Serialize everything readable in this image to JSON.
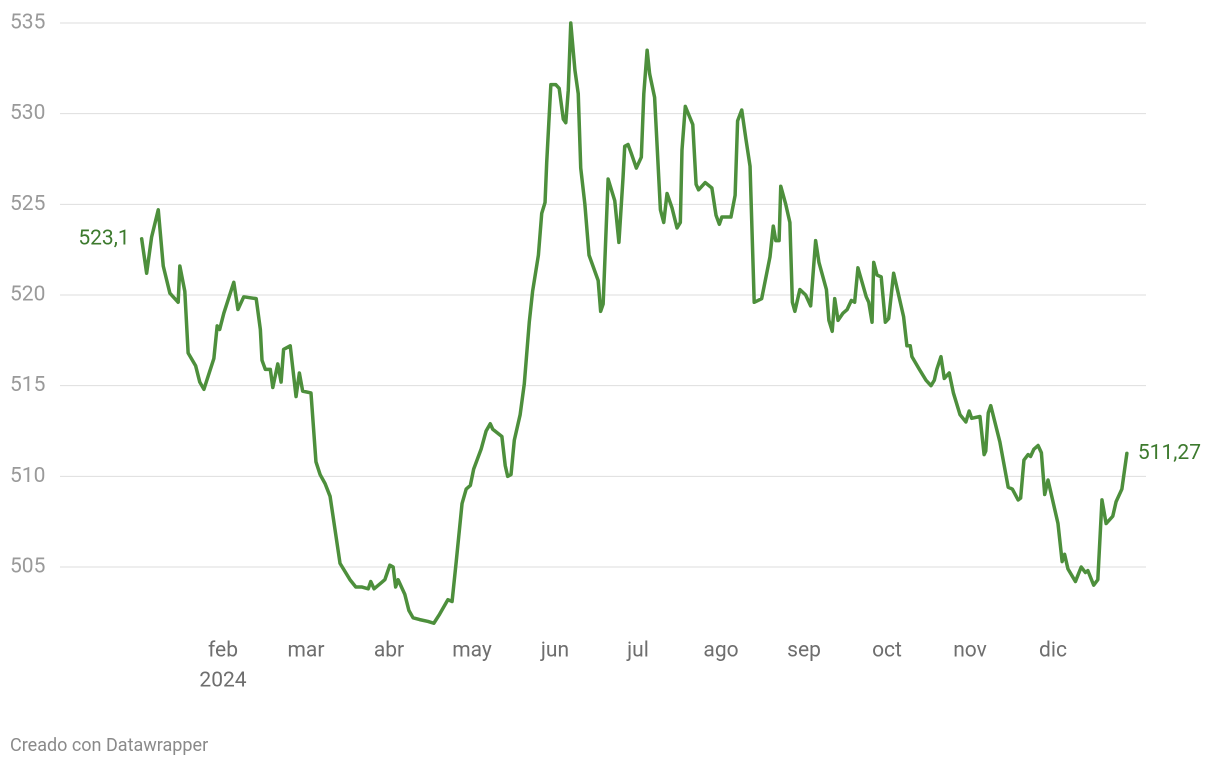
{
  "chart_data": {
    "type": "line",
    "x": [
      1.02,
      1.08,
      1.14,
      1.22,
      1.28,
      1.36,
      1.46,
      1.48,
      1.54,
      1.58,
      1.67,
      1.72,
      1.77,
      1.89,
      1.93,
      1.96,
      2.01,
      2.13,
      2.18,
      2.25,
      2.4,
      2.45,
      2.47,
      2.51,
      2.57,
      2.6,
      2.66,
      2.7,
      2.73,
      2.81,
      2.88,
      2.92,
      2.96,
      3.06,
      3.12,
      3.17,
      3.23,
      3.29,
      3.41,
      3.53,
      3.6,
      3.67,
      3.75,
      3.78,
      3.82,
      3.95,
      4.01,
      4.05,
      4.08,
      4.11,
      4.19,
      4.24,
      4.29,
      4.37,
      4.47,
      4.54,
      4.61,
      4.71,
      4.76,
      4.81,
      4.88,
      4.93,
      4.98,
      5.02,
      5.11,
      5.17,
      5.22,
      5.25,
      5.36,
      5.4,
      5.43,
      5.47,
      5.51,
      5.58,
      5.63,
      5.69,
      5.73,
      5.8,
      5.84,
      5.88,
      5.9,
      5.95,
      6.01,
      6.05,
      6.1,
      6.13,
      6.16,
      6.19,
      6.24,
      6.28,
      6.31,
      6.36,
      6.41,
      6.52,
      6.55,
      6.58,
      6.64,
      6.72,
      6.77,
      6.82,
      6.84,
      6.88,
      6.92,
      6.98,
      7.04,
      7.07,
      7.11,
      7.14,
      7.2,
      7.27,
      7.31,
      7.35,
      7.41,
      7.47,
      7.51,
      7.53,
      7.57,
      7.66,
      7.7,
      7.73,
      7.81,
      7.89,
      7.94,
      7.98,
      8.01,
      8.12,
      8.17,
      8.2,
      8.25,
      8.3,
      8.35,
      8.4,
      8.49,
      8.59,
      8.63,
      8.66,
      8.7,
      8.72,
      8.78,
      8.83,
      8.86,
      8.89,
      8.95,
      9.02,
      9.08,
      9.14,
      9.18,
      9.27,
      9.3,
      9.34,
      9.37,
      9.41,
      9.47,
      9.52,
      9.57,
      9.61,
      9.65,
      9.75,
      9.78,
      9.82,
      9.84,
      9.88,
      9.93,
      9.98,
      10.02,
      10.08,
      10.2,
      10.24,
      10.28,
      10.3,
      10.39,
      10.47,
      10.53,
      10.57,
      10.6,
      10.65,
      10.69,
      10.75,
      10.8,
      10.88,
      10.95,
      10.99,
      11.02,
      11.12,
      11.17,
      11.19,
      11.22,
      11.25,
      11.36,
      11.4,
      11.46,
      11.51,
      11.58,
      11.61,
      11.65,
      11.7,
      11.73,
      11.77,
      11.82,
      11.86,
      11.9,
      11.94,
      12.06,
      12.11,
      12.14,
      12.18,
      12.27,
      12.34,
      12.39,
      12.42,
      12.49,
      12.54,
      12.59,
      12.64,
      12.72,
      12.76,
      12.83,
      12.89
    ],
    "series": [
      {
        "color": "#4d8f3c",
        "values": [
          523.1,
          521.2,
          523.2,
          524.7,
          521.6,
          520.1,
          519.6,
          521.6,
          520.2,
          516.8,
          516.1,
          515.2,
          514.8,
          516.5,
          518.3,
          518.1,
          519.0,
          520.7,
          519.2,
          519.9,
          519.8,
          518.1,
          516.4,
          515.9,
          515.9,
          514.9,
          516.2,
          515.2,
          517.0,
          517.2,
          514.4,
          515.7,
          514.7,
          514.6,
          510.8,
          510.1,
          509.6,
          508.9,
          505.2,
          504.3,
          503.9,
          503.9,
          503.8,
          504.2,
          503.8,
          504.3,
          505.1,
          505.0,
          503.9,
          504.3,
          503.5,
          502.6,
          502.2,
          502.1,
          502.0,
          501.9,
          502.4,
          503.2,
          503.1,
          505.3,
          508.5,
          509.3,
          509.5,
          510.4,
          511.5,
          512.5,
          512.9,
          512.6,
          512.2,
          510.6,
          510.0,
          510.1,
          512.0,
          513.4,
          515.1,
          518.5,
          520.2,
          522.2,
          524.5,
          525.1,
          527.3,
          531.6,
          531.6,
          531.4,
          529.7,
          529.5,
          531.3,
          535.0,
          532.4,
          531.1,
          527.0,
          525.0,
          522.2,
          520.8,
          519.1,
          519.5,
          526.4,
          525.2,
          522.9,
          526.5,
          528.2,
          528.3,
          527.8,
          527.0,
          527.6,
          531.1,
          533.5,
          532.2,
          530.9,
          524.7,
          524.0,
          525.6,
          524.8,
          523.7,
          524.0,
          528.0,
          530.4,
          529.4,
          526.1,
          525.8,
          526.2,
          525.9,
          524.4,
          523.9,
          524.3,
          524.3,
          525.5,
          529.6,
          530.2,
          528.6,
          527.1,
          519.6,
          519.8,
          522.1,
          523.8,
          523.0,
          523.0,
          526.0,
          525.0,
          524.0,
          519.6,
          519.1,
          520.3,
          520.0,
          519.4,
          523.0,
          521.8,
          520.3,
          518.6,
          518.0,
          519.8,
          518.6,
          519.0,
          519.2,
          519.7,
          519.6,
          521.5,
          519.9,
          519.6,
          518.5,
          521.8,
          521.1,
          521.0,
          518.5,
          518.7,
          521.2,
          518.8,
          517.2,
          517.2,
          516.6,
          515.9,
          515.3,
          515.0,
          515.3,
          515.9,
          516.6,
          515.4,
          515.7,
          514.6,
          513.4,
          513.0,
          513.6,
          513.2,
          513.3,
          511.2,
          511.4,
          513.5,
          513.9,
          511.9,
          510.9,
          509.4,
          509.3,
          508.7,
          508.8,
          510.9,
          511.2,
          511.1,
          511.5,
          511.7,
          511.3,
          509.0,
          509.8,
          507.4,
          505.3,
          505.7,
          504.9,
          504.2,
          505.0,
          504.7,
          504.8,
          504.0,
          504.3,
          508.7,
          507.4,
          507.8,
          508.6,
          509.3,
          511.27
        ]
      }
    ],
    "value_labels": {
      "0": "523,1",
      "217": "511,27"
    },
    "xlim": [
      1,
      13
    ],
    "xticks": [
      {
        "value": 2,
        "label": "feb"
      },
      {
        "value": 3,
        "label": "mar"
      },
      {
        "value": 4,
        "label": "abr"
      },
      {
        "value": 5,
        "label": "may"
      },
      {
        "value": 6,
        "label": "jun"
      },
      {
        "value": 7,
        "label": "jul"
      },
      {
        "value": 8,
        "label": "ago"
      },
      {
        "value": 9,
        "label": "sep"
      },
      {
        "value": 10,
        "label": "oct"
      },
      {
        "value": 11,
        "label": "nov"
      },
      {
        "value": 12,
        "label": "dic"
      }
    ],
    "x_year_label": "2024",
    "ylim": [
      501.5,
      535
    ],
    "yticks": [
      505,
      510,
      515,
      520,
      525,
      530,
      535
    ],
    "grid": true,
    "credit": "Creado con Datawrapper"
  }
}
